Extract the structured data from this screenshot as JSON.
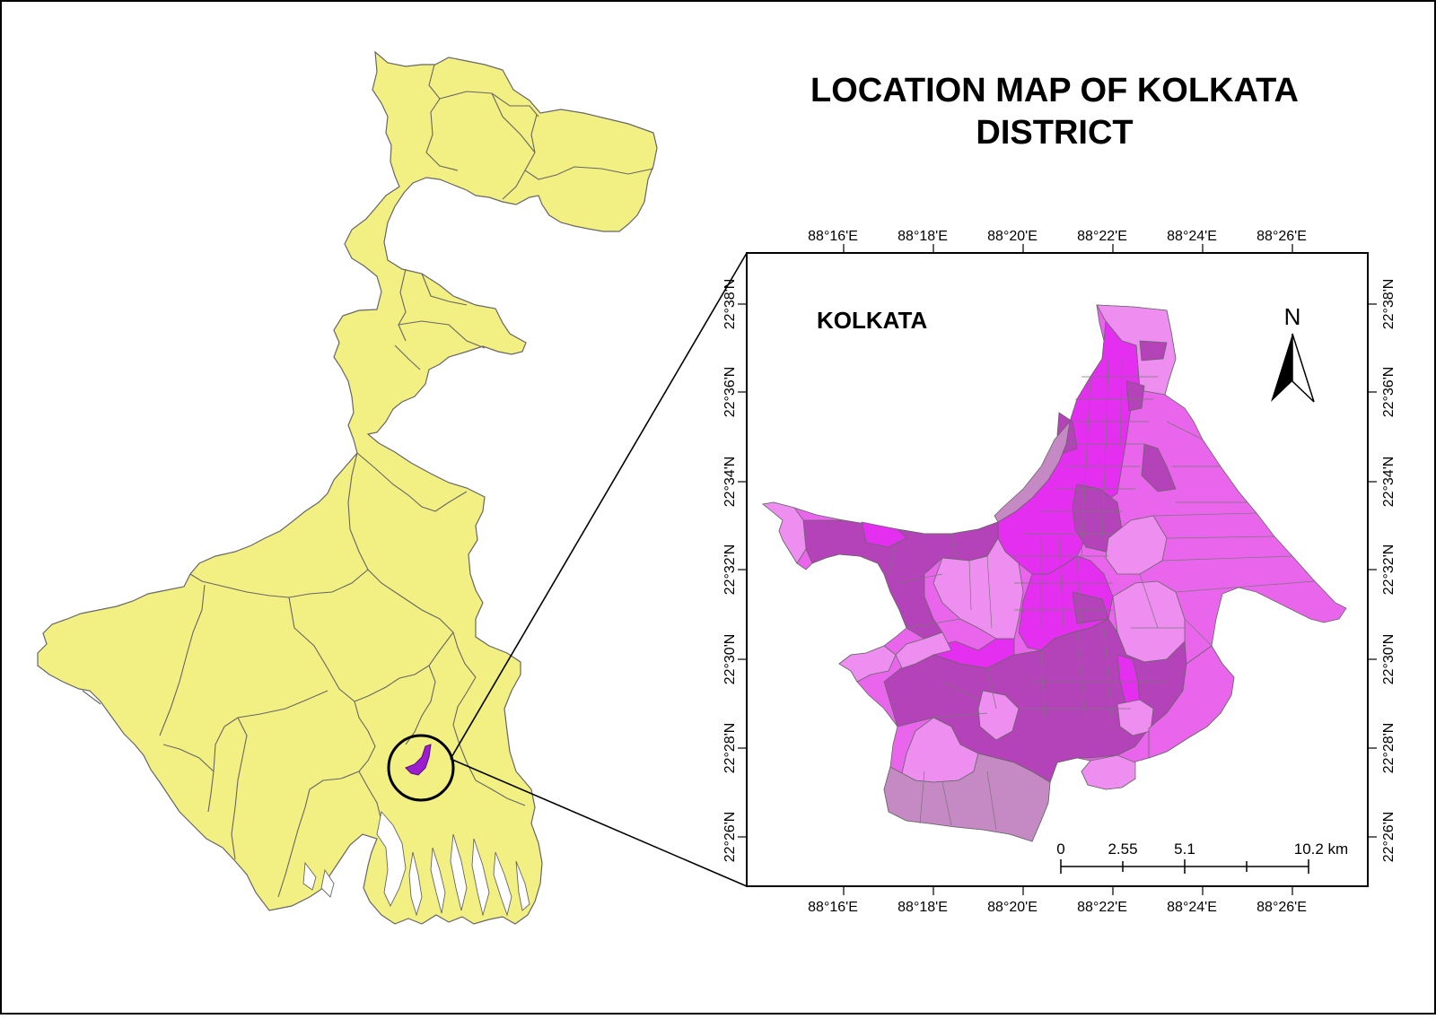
{
  "title": {
    "line1": "LOCATION MAP OF KOLKATA",
    "line2": "DISTRICT"
  },
  "inset": {
    "label": "KOLKATA",
    "north_label": "N"
  },
  "axes": {
    "lon_ticks": [
      "88°16'E",
      "88°18'E",
      "88°20'E",
      "88°22'E",
      "88°24'E",
      "88°26'E"
    ],
    "lat_ticks": [
      "22°38'N",
      "22°36'N",
      "22°34'N",
      "22°32'N",
      "22°30'N",
      "22°28'N",
      "22°26'N"
    ]
  },
  "scale_bar": {
    "labels": [
      "0",
      "2.55",
      "5.1",
      "10.2 km"
    ]
  },
  "colors": {
    "state_fill": "#f3f083",
    "ward_light": "#ee8ef0",
    "ward_mid": "#e965ec",
    "ward_bright": "#e42ef0",
    "ward_dark": "#b442b8",
    "ward_muted": "#c58ac4",
    "outline": "#666666"
  }
}
